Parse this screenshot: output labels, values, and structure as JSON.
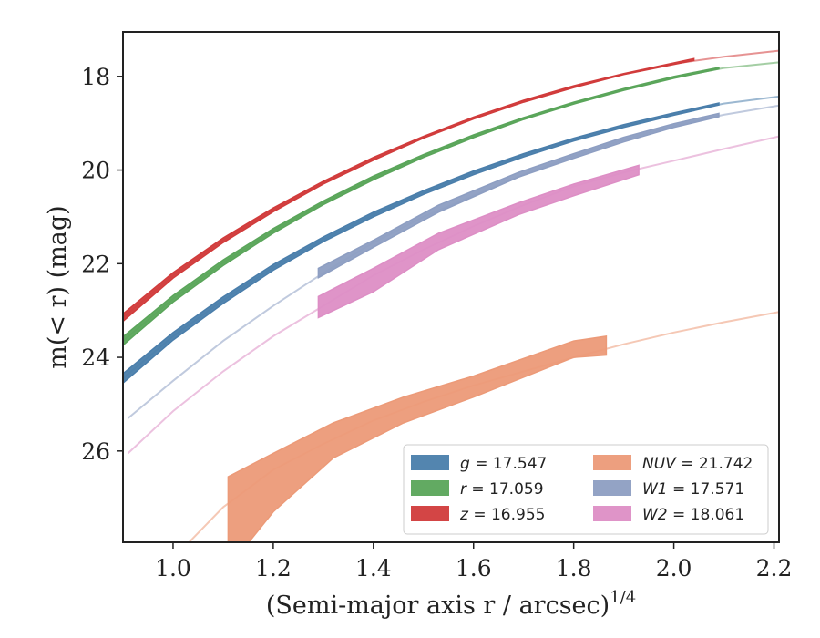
{
  "chart_data": {
    "type": "line",
    "title": "",
    "xlabel": "(Semi-major axis r / arcsec)",
    "xlabel_sup": "1/4",
    "ylabel": "m(< r) (mag)",
    "xlim": [
      0.9,
      2.21
    ],
    "ylim": [
      27.95,
      17.05
    ],
    "y_inverted": true,
    "grid": false,
    "legend_position": "lower-right",
    "x_ticks": [
      "1.0",
      "1.2",
      "1.4",
      "1.6",
      "1.8",
      "2.0",
      "2.2"
    ],
    "y_ticks": [
      "18",
      "20",
      "22",
      "24",
      "26"
    ],
    "series": [
      {
        "key": "g",
        "name": "g = 17.547",
        "label_sym": "g",
        "label_val": " = 17.547",
        "color": "#4a7eab",
        "curve_x": [
          0.9,
          1.0,
          1.1,
          1.2,
          1.3,
          1.4,
          1.5,
          1.6,
          1.7,
          1.8,
          1.9,
          2.0,
          2.1,
          2.21
        ],
        "curve_y": [
          24.45,
          23.55,
          22.78,
          22.08,
          21.48,
          20.95,
          20.48,
          20.06,
          19.68,
          19.35,
          19.06,
          18.8,
          18.58,
          18.43
        ],
        "band_x": [
          0.9,
          1.0,
          1.1,
          1.2,
          1.3,
          1.4,
          1.5,
          1.6,
          1.7,
          1.8,
          1.9,
          2.0,
          2.09
        ],
        "band_upper": [
          24.35,
          23.47,
          22.71,
          22.02,
          21.43,
          20.9,
          20.44,
          20.02,
          19.65,
          19.32,
          19.03,
          18.78,
          18.57
        ],
        "band_lower": [
          24.55,
          23.63,
          22.85,
          22.14,
          21.53,
          21.0,
          20.52,
          20.1,
          19.72,
          19.38,
          19.09,
          18.83,
          18.61
        ]
      },
      {
        "key": "r",
        "name": "r = 17.059",
        "label_sym": "r",
        "label_val": " = 17.059",
        "color": "#5aa55a",
        "curve_x": [
          0.9,
          1.0,
          1.1,
          1.2,
          1.3,
          1.4,
          1.5,
          1.6,
          1.7,
          1.8,
          1.9,
          2.0,
          2.1,
          2.21
        ],
        "curve_y": [
          23.65,
          22.75,
          21.98,
          21.3,
          20.7,
          20.17,
          19.7,
          19.28,
          18.9,
          18.57,
          18.28,
          18.02,
          17.82,
          17.7
        ],
        "band_x": [
          0.9,
          1.0,
          1.1,
          1.2,
          1.3,
          1.4,
          1.5,
          1.6,
          1.7,
          1.8,
          1.9,
          2.0,
          2.09
        ],
        "band_upper": [
          23.56,
          22.68,
          21.92,
          21.25,
          20.66,
          20.13,
          19.67,
          19.25,
          18.88,
          18.55,
          18.26,
          18.0,
          17.81
        ],
        "band_lower": [
          23.74,
          22.82,
          22.04,
          21.35,
          20.74,
          20.21,
          19.73,
          19.31,
          18.92,
          18.59,
          18.3,
          18.04,
          17.84
        ]
      },
      {
        "key": "z",
        "name": "z = 16.955",
        "label_sym": "z",
        "label_val": " = 16.955",
        "color": "#d13b3b",
        "curve_x": [
          0.9,
          1.0,
          1.1,
          1.2,
          1.3,
          1.4,
          1.5,
          1.6,
          1.7,
          1.8,
          1.9,
          2.0,
          2.1,
          2.21
        ],
        "curve_y": [
          23.15,
          22.25,
          21.5,
          20.85,
          20.27,
          19.76,
          19.3,
          18.89,
          18.53,
          18.22,
          17.95,
          17.73,
          17.58,
          17.45
        ],
        "band_x": [
          0.9,
          1.0,
          1.1,
          1.2,
          1.3,
          1.4,
          1.5,
          1.6,
          1.7,
          1.8,
          1.9,
          2.04
        ],
        "band_upper": [
          23.07,
          22.19,
          21.45,
          20.81,
          20.24,
          19.73,
          19.28,
          18.87,
          18.51,
          18.2,
          17.94,
          17.62
        ],
        "band_lower": [
          23.23,
          22.31,
          21.55,
          20.89,
          20.3,
          19.79,
          19.32,
          18.91,
          18.55,
          18.24,
          17.96,
          17.66
        ]
      },
      {
        "key": "NUV",
        "name": "NUV = 21.742",
        "label_sym": "NUV",
        "label_val": " = 21.742",
        "color": "#ec9a78",
        "curve_x": [
          0.9,
          1.0,
          1.1,
          1.2,
          1.3,
          1.4,
          1.5,
          1.6,
          1.7,
          1.8,
          1.9,
          2.0,
          2.1,
          2.21
        ],
        "curve_y": [
          29.8,
          28.3,
          27.2,
          26.4,
          25.85,
          25.35,
          24.95,
          24.6,
          24.3,
          24.0,
          23.72,
          23.47,
          23.25,
          23.03
        ],
        "band_x": [
          1.11,
          1.2,
          1.32,
          1.46,
          1.6,
          1.8,
          1.865
        ],
        "band_upper": [
          26.55,
          26.05,
          25.4,
          24.85,
          24.4,
          23.65,
          23.55
        ],
        "band_lower": [
          28.5,
          27.3,
          26.15,
          25.4,
          24.85,
          24.0,
          23.95
        ]
      },
      {
        "key": "W1",
        "name": "W1 = 17.571",
        "label_sym": "W1",
        "label_val": " = 17.571",
        "color": "#8d9ec2",
        "curve_x": [
          0.91,
          1.0,
          1.1,
          1.2,
          1.3,
          1.4,
          1.5,
          1.6,
          1.7,
          1.8,
          1.9,
          2.0,
          2.1,
          2.21
        ],
        "curve_y": [
          25.3,
          24.5,
          23.65,
          22.9,
          22.2,
          21.55,
          21.0,
          20.55,
          20.1,
          19.7,
          19.35,
          19.05,
          18.82,
          18.62
        ],
        "band_x": [
          1.29,
          1.4,
          1.53,
          1.69,
          1.8,
          1.9,
          2.0,
          2.09
        ],
        "band_upper": [
          22.1,
          21.5,
          20.75,
          20.05,
          19.65,
          19.3,
          19.01,
          18.79
        ],
        "band_lower": [
          22.3,
          21.65,
          20.9,
          20.15,
          19.75,
          19.4,
          19.09,
          18.86
        ]
      },
      {
        "key": "W2",
        "name": "W2 = 18.061",
        "label_sym": "W2",
        "label_val": " = 18.061",
        "color": "#dd8ec5",
        "curve_x": [
          0.91,
          1.0,
          1.1,
          1.2,
          1.3,
          1.4,
          1.5,
          1.6,
          1.7,
          1.8,
          1.9,
          2.0,
          2.1,
          2.21
        ],
        "curve_y": [
          26.05,
          25.15,
          24.3,
          23.55,
          22.9,
          22.25,
          21.7,
          21.2,
          20.75,
          20.35,
          20.05,
          19.8,
          19.55,
          19.28
        ],
        "band_x": [
          1.29,
          1.4,
          1.53,
          1.69,
          1.8,
          1.93
        ],
        "band_upper": [
          22.7,
          22.1,
          21.35,
          20.7,
          20.3,
          19.9
        ],
        "band_lower": [
          23.15,
          22.6,
          21.7,
          20.95,
          20.55,
          20.1
        ]
      }
    ]
  }
}
